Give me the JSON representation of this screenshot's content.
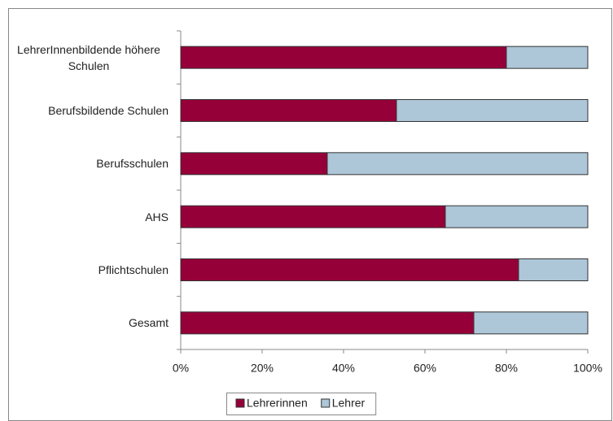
{
  "chart_data": {
    "type": "bar",
    "orientation": "horizontal",
    "stacked": true,
    "categories": [
      "LehrerInnenbildende höhere Schulen",
      "Berufsbildende Schulen",
      "Berufsschulen",
      "AHS",
      "Pflichtschulen",
      "Gesamt"
    ],
    "series": [
      {
        "name": "Lehrerinnen",
        "color": "#960039",
        "values": [
          80,
          53,
          36,
          65,
          83,
          72
        ]
      },
      {
        "name": "Lehrer",
        "color": "#adc6d8",
        "values": [
          20,
          47,
          64,
          35,
          17,
          28
        ]
      }
    ],
    "xlim": [
      0,
      100
    ],
    "xticks": [
      {
        "value": 0,
        "label": "0%"
      },
      {
        "value": 20,
        "label": "20%"
      },
      {
        "value": 40,
        "label": "40%"
      },
      {
        "value": 60,
        "label": "60%"
      },
      {
        "value": 80,
        "label": "80%"
      },
      {
        "value": 100,
        "label": "100%"
      }
    ],
    "legend": "bottom"
  }
}
